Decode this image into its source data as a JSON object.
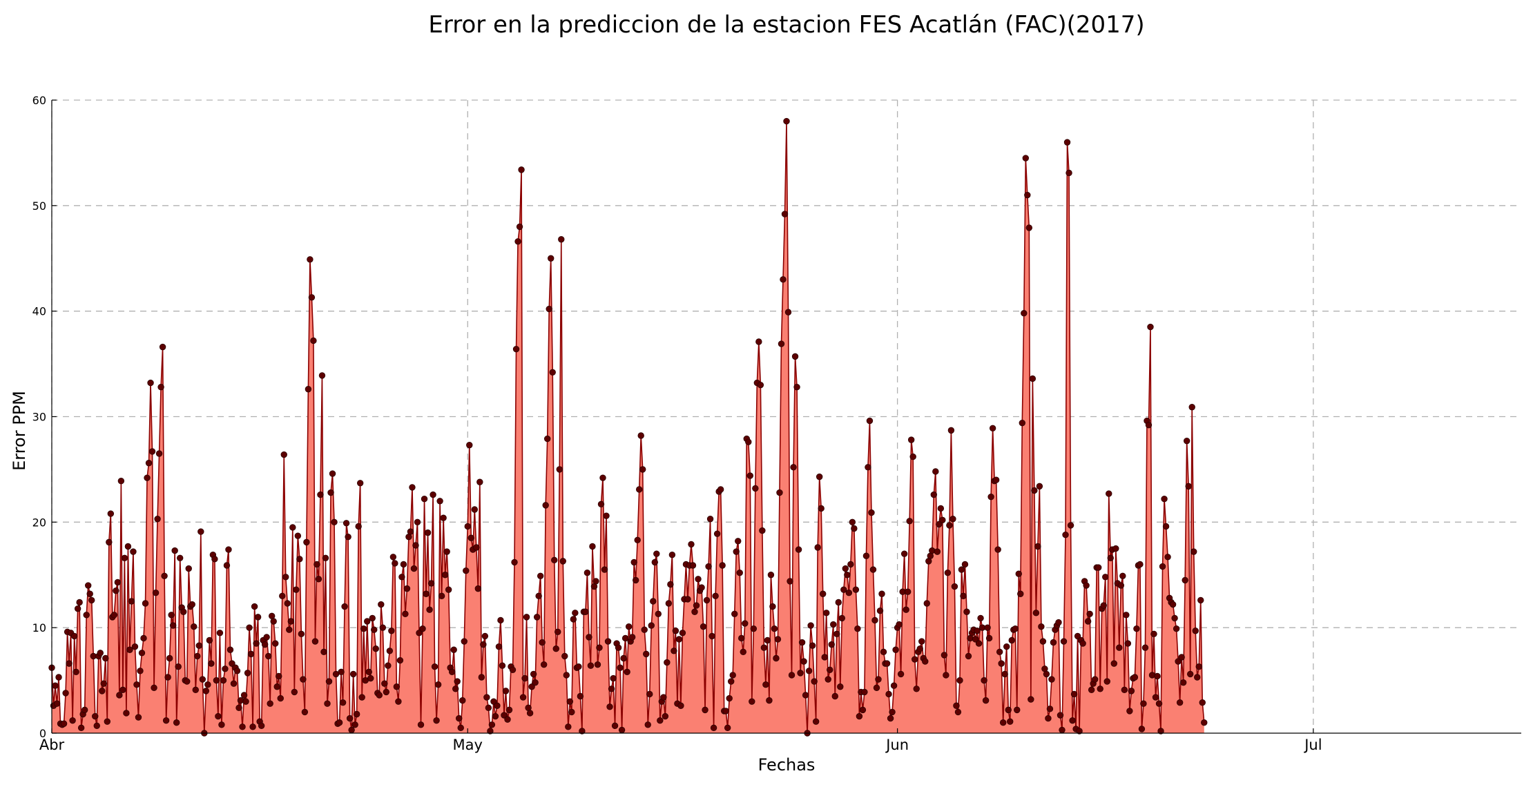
{
  "chart_data": {
    "type": "area",
    "title": "Error en la prediccion de la estacion FES Acatlán (FAC)(2017)",
    "xlabel": "Fechas",
    "ylabel": "Error PPM",
    "ylim": [
      0,
      60
    ],
    "yticks": [
      0,
      10,
      20,
      30,
      40,
      50,
      60
    ],
    "xlim": [
      "2017-04-01",
      "2017-07-16"
    ],
    "xticks": [
      {
        "date": "2017-04-01",
        "label": "Abr"
      },
      {
        "date": "2017-05-01",
        "label": "May"
      },
      {
        "date": "2017-06-01",
        "label": "Jun"
      },
      {
        "date": "2017-07-01",
        "label": "Jul"
      }
    ],
    "grid": true,
    "colors": {
      "fill": "#fa8072",
      "line": "#8b0000",
      "marker": "#5c0000"
    },
    "x_start": "2017-04-01",
    "x_step_hours": 3,
    "values": [
      6.2,
      2.6,
      4.5,
      2.8,
      5.3,
      0.9,
      0.8,
      0.9,
      3.8,
      9.6,
      6.6,
      9.5,
      1.2,
      9.2,
      5.8,
      11.8,
      12.4,
      0.5,
      1.8,
      2.2,
      11.2,
      14.0,
      13.2,
      12.6,
      7.3,
      1.6,
      0.7,
      7.3,
      7.6,
      4.0,
      4.7,
      7.1,
      1.1,
      18.1,
      20.8,
      11.0,
      11.2,
      13.5,
      14.3,
      3.6,
      23.9,
      4.1,
      16.6,
      1.9,
      17.7,
      7.9,
      12.5,
      17.2,
      8.2,
      4.6,
      1.5,
      5.9,
      7.6,
      9.0,
      12.3,
      24.2,
      25.6,
      33.2,
      26.7,
      4.3,
      13.3,
      20.3,
      26.5,
      32.8,
      36.6,
      14.9,
      1.2,
      5.3,
      7.1,
      11.2,
      10.2,
      17.3,
      1.0,
      6.3,
      16.6,
      11.9,
      11.5,
      5.0,
      4.9,
      15.6,
      12.0,
      12.2,
      10.1,
      4.1,
      7.3,
      8.3,
      19.1,
      5.1,
      0.0,
      4.0,
      4.6,
      8.8,
      6.6,
      16.9,
      16.5,
      5.0,
      1.6,
      9.5,
      0.8,
      5.0,
      6.1,
      15.9,
      17.4,
      7.9,
      6.6,
      4.7,
      6.2,
      5.9,
      2.4,
      3.1,
      0.6,
      3.6,
      3.0,
      5.7,
      10.0,
      7.5,
      0.6,
      12.0,
      8.5,
      11.0,
      1.1,
      0.7,
      8.8,
      8.4,
      9.1,
      7.3,
      2.8,
      11.1,
      10.6,
      8.5,
      4.4,
      5.4,
      3.3,
      13.0,
      26.4,
      14.8,
      12.3,
      9.8,
      10.6,
      19.5,
      3.9,
      13.6,
      18.7,
      16.5,
      9.4,
      5.1,
      2.0,
      18.1,
      32.6,
      44.9,
      41.3,
      37.2,
      8.7,
      16.0,
      14.6,
      22.6,
      33.9,
      7.7,
      16.6,
      2.8,
      4.9,
      22.8,
      24.6,
      20.0,
      5.6,
      0.9,
      1.0,
      5.8,
      2.9,
      12.0,
      19.9,
      18.6,
      1.4,
      0.3,
      5.6,
      0.8,
      1.8,
      19.6,
      23.7,
      3.4,
      9.9,
      5.0,
      10.6,
      5.8,
      5.2,
      10.9,
      9.8,
      8.0,
      3.8,
      3.6,
      12.2,
      10.0,
      4.7,
      3.9,
      6.4,
      7.8,
      9.7,
      16.7,
      16.1,
      4.4,
      3.0,
      6.9,
      14.8,
      16.0,
      11.3,
      13.7,
      18.6,
      19.1,
      23.3,
      15.6,
      17.8,
      20.0,
      9.5,
      0.8,
      9.9,
      22.2,
      13.2,
      19.0,
      11.7,
      14.2,
      22.6,
      6.3,
      1.2,
      4.6,
      22.0,
      13.0,
      20.4,
      15.0,
      17.2,
      13.6,
      6.2,
      5.8,
      7.9,
      4.2,
      4.9,
      1.4,
      0.5,
      3.1,
      8.7,
      15.4,
      19.6,
      27.3,
      18.5,
      17.4,
      21.2,
      17.6,
      13.7,
      23.8,
      5.3,
      8.4,
      9.2,
      3.4,
      2.4,
      0.2,
      0.8,
      3.0,
      1.6,
      2.6,
      8.2,
      10.7,
      6.4,
      1.7,
      4.0,
      1.3,
      2.2,
      6.3,
      6.0,
      16.2,
      36.4,
      46.6,
      48.0,
      53.4,
      3.4,
      5.2,
      11.0,
      2.4,
      1.9,
      4.4,
      5.6,
      4.8,
      11.0,
      13.0,
      14.9,
      8.6,
      6.5,
      21.6,
      27.9,
      40.2,
      45.0,
      34.2,
      16.4,
      8.0,
      9.6,
      25.0,
      46.8,
      16.3,
      7.3,
      5.5,
      0.6,
      3.0,
      2.0,
      10.8,
      11.4,
      6.2,
      6.3,
      3.5,
      0.2,
      11.5,
      11.5,
      15.2,
      9.1,
      6.4,
      17.7,
      13.9,
      14.4,
      6.5,
      8.1,
      21.7,
      24.2,
      15.5,
      20.6,
      8.7,
      2.5,
      4.2,
      5.2,
      0.7,
      8.5,
      8.1,
      6.2,
      0.3,
      7.1,
      9.0,
      5.8,
      10.1,
      8.7,
      9.1,
      16.2,
      14.5,
      18.3,
      23.1,
      28.2,
      25.0,
      9.8,
      7.5,
      0.8,
      3.7,
      10.2,
      12.5,
      16.2,
      17.0,
      11.3,
      1.2,
      3.0,
      3.4,
      1.6,
      6.7,
      12.3,
      14.1,
      16.9,
      7.8,
      9.7,
      2.8,
      8.9,
      2.6,
      9.5,
      12.7,
      16.0,
      12.7,
      15.9,
      17.9,
      15.9,
      11.5,
      12.1,
      14.6,
      13.5,
      13.8,
      10.1,
      2.2,
      12.6,
      15.8,
      20.3,
      9.2,
      0.5,
      13.0,
      18.9,
      22.9,
      23.1,
      15.9,
      2.1,
      2.1,
      0.5,
      3.3,
      4.9,
      5.5,
      11.3,
      17.2,
      18.2,
      15.2,
      9.0,
      7.7,
      10.4,
      27.9,
      27.6,
      24.4,
      3.0,
      9.9,
      23.2,
      33.2,
      37.1,
      33.0,
      19.2,
      8.1,
      4.6,
      8.8,
      3.1,
      15.0,
      12.0,
      9.9,
      7.1,
      8.9,
      22.8,
      36.9,
      43.0,
      49.2,
      58.0,
      39.9,
      14.4,
      5.5,
      25.2,
      35.7,
      32.8,
      17.4,
      5.7,
      8.6,
      6.8,
      3.6,
      0.0,
      5.9,
      10.2,
      8.3,
      4.9,
      1.1,
      17.6,
      24.3,
      21.3,
      13.2,
      7.2,
      11.4,
      5.1,
      6.0,
      8.4,
      10.3,
      3.5,
      9.4,
      12.4,
      4.4,
      10.9,
      13.6,
      15.6,
      15.0,
      13.3,
      16.0,
      20.0,
      19.4,
      13.6,
      9.9,
      1.6,
      3.9,
      2.2,
      3.9,
      16.8,
      25.2,
      29.6,
      20.9,
      15.5,
      10.7,
      4.3,
      5.1,
      11.6,
      13.2,
      7.7,
      6.6,
      6.6,
      3.7,
      1.4,
      2.0,
      4.5,
      7.9,
      10.0,
      10.3,
      5.6,
      13.4,
      17.0,
      11.7,
      13.4,
      20.1,
      27.8,
      26.2,
      7.0,
      4.2,
      7.7,
      8.0,
      8.7,
      7.1,
      6.8,
      12.3,
      16.3,
      16.8,
      17.3,
      22.6,
      24.8,
      17.2,
      19.8,
      21.3,
      20.2,
      7.4,
      5.5,
      15.2,
      19.7,
      28.7,
      20.3,
      13.9,
      2.6,
      2.0,
      5.0,
      15.5,
      13.0,
      16.0,
      11.5,
      7.3,
      9.0,
      9.5,
      9.8,
      8.9,
      9.7,
      8.5,
      10.9,
      10.0,
      5.0,
      3.1,
      10.0,
      9.0,
      22.4,
      28.9,
      23.9,
      24.0,
      17.4,
      7.7,
      6.6,
      1.0,
      5.6,
      8.2,
      2.2,
      1.1,
      8.8,
      9.8,
      9.9,
      2.2,
      15.1,
      13.2,
      29.4,
      39.8,
      54.5,
      51.0,
      47.9,
      3.2,
      33.6,
      23.0,
      11.4,
      17.7,
      23.4,
      10.1,
      8.7,
      6.1,
      5.6,
      1.4,
      2.3,
      5.1,
      8.6,
      9.8,
      10.2,
      10.5,
      1.7,
      0.3,
      8.7,
      18.8,
      56.0,
      53.1,
      19.7,
      1.2,
      3.7,
      0.4,
      9.2,
      0.2,
      8.8,
      8.5,
      14.4,
      14.0,
      10.6,
      11.3,
      4.1,
      4.7,
      5.1,
      15.7,
      15.7,
      4.2,
      11.8,
      12.1,
      14.8,
      4.9,
      22.7,
      16.6,
      17.4,
      6.6,
      17.5,
      14.2,
      8.1,
      14.0,
      14.9,
      4.1,
      11.2,
      8.5,
      2.1,
      4.0,
      5.2,
      5.3,
      9.9,
      15.9,
      16.0,
      0.4,
      2.8,
      8.1,
      29.6,
      29.2,
      38.5,
      5.5,
      9.4,
      3.4,
      5.4,
      2.8,
      0.2,
      15.8,
      22.2,
      19.6,
      16.7,
      12.8,
      12.4,
      12.2,
      10.9,
      9.9,
      6.8,
      2.9,
      7.2,
      4.8,
      14.5,
      27.7,
      23.4,
      5.6,
      30.9,
      17.2,
      9.7,
      5.3,
      6.3,
      12.6,
      2.9,
      1.0
    ]
  }
}
